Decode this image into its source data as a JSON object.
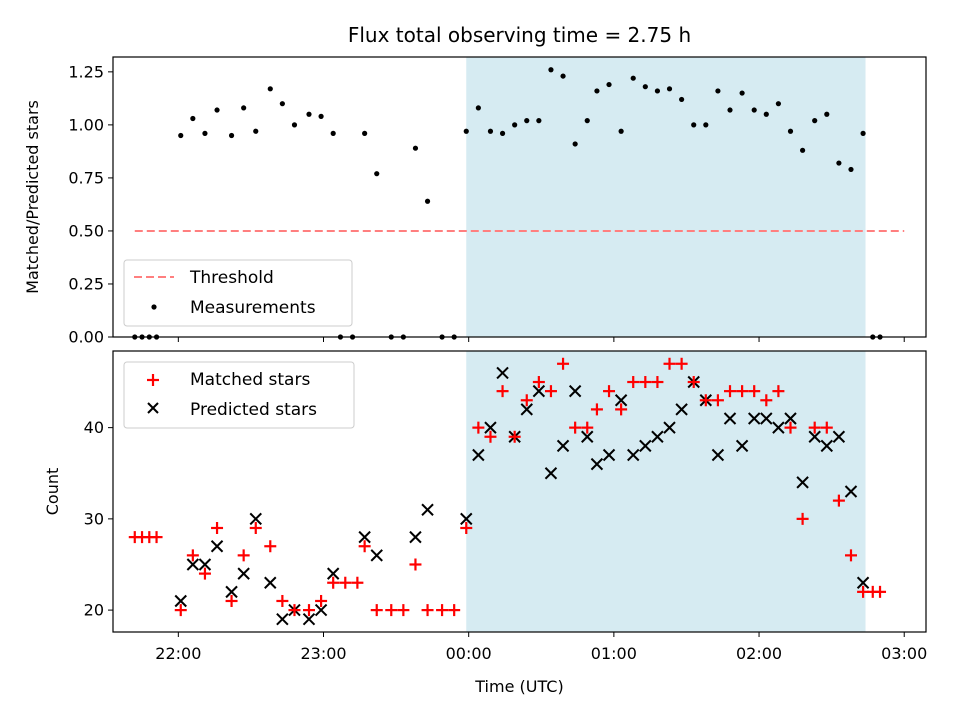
{
  "chart_data": [
    {
      "type": "scatter",
      "title": "Flux total observing time = 2.75 h",
      "xlabel": "",
      "ylabel": "Matched/Predicted stars",
      "ylim": [
        0,
        1.32
      ],
      "yticks": [
        0.0,
        0.25,
        0.5,
        0.75,
        1.0,
        1.25
      ],
      "ytick_labels": [
        "0.00",
        "0.25",
        "0.50",
        "0.75",
        "1.00",
        "1.25"
      ],
      "xlim": [
        "21:33",
        "03:09"
      ],
      "xticks": [
        "22:00",
        "23:00",
        "00:00",
        "01:00",
        "02:00",
        "03:00"
      ],
      "xtick_labels_visible": false,
      "shaded_interval": [
        "23:59",
        "02:44"
      ],
      "shade_color": "#add8e6",
      "legend_position": "lower-left",
      "threshold": {
        "name": "Threshold",
        "value": 0.5,
        "x_range": [
          "21:42",
          "03:00"
        ],
        "color": "#ff7f7f",
        "style": "dashed"
      },
      "series": [
        {
          "name": "Measurements",
          "color": "#000000",
          "marker": "dot",
          "points": [
            [
              "21:42",
              0.0
            ],
            [
              "21:45",
              0.0
            ],
            [
              "21:48",
              0.0
            ],
            [
              "21:51",
              0.0
            ],
            [
              "22:01",
              0.95
            ],
            [
              "22:06",
              1.03
            ],
            [
              "22:11",
              0.96
            ],
            [
              "22:16",
              1.07
            ],
            [
              "22:22",
              0.95
            ],
            [
              "22:27",
              1.08
            ],
            [
              "22:32",
              0.97
            ],
            [
              "22:38",
              1.17
            ],
            [
              "22:43",
              1.1
            ],
            [
              "22:48",
              1.0
            ],
            [
              "22:54",
              1.05
            ],
            [
              "22:59",
              1.04
            ],
            [
              "23:04",
              0.96
            ],
            [
              "23:07",
              0.0
            ],
            [
              "23:12",
              0.0
            ],
            [
              "23:17",
              0.96
            ],
            [
              "23:22",
              0.77
            ],
            [
              "23:28",
              0.0
            ],
            [
              "23:33",
              0.0
            ],
            [
              "23:38",
              0.89
            ],
            [
              "23:43",
              0.64
            ],
            [
              "23:49",
              0.0
            ],
            [
              "23:54",
              0.0
            ],
            [
              "23:59",
              0.97
            ],
            [
              "00:04",
              1.08
            ],
            [
              "00:09",
              0.97
            ],
            [
              "00:14",
              0.96
            ],
            [
              "00:19",
              1.0
            ],
            [
              "00:24",
              1.02
            ],
            [
              "00:29",
              1.02
            ],
            [
              "00:34",
              1.26
            ],
            [
              "00:39",
              1.23
            ],
            [
              "00:44",
              0.91
            ],
            [
              "00:49",
              1.02
            ],
            [
              "00:53",
              1.16
            ],
            [
              "00:58",
              1.19
            ],
            [
              "01:03",
              0.97
            ],
            [
              "01:08",
              1.22
            ],
            [
              "01:13",
              1.18
            ],
            [
              "01:18",
              1.16
            ],
            [
              "01:23",
              1.17
            ],
            [
              "01:28",
              1.12
            ],
            [
              "01:33",
              1.0
            ],
            [
              "01:38",
              1.0
            ],
            [
              "01:43",
              1.16
            ],
            [
              "01:48",
              1.07
            ],
            [
              "01:53",
              1.15
            ],
            [
              "01:58",
              1.07
            ],
            [
              "02:03",
              1.05
            ],
            [
              "02:08",
              1.1
            ],
            [
              "02:13",
              0.97
            ],
            [
              "02:18",
              0.88
            ],
            [
              "02:23",
              1.02
            ],
            [
              "02:28",
              1.05
            ],
            [
              "02:33",
              0.82
            ],
            [
              "02:38",
              0.79
            ],
            [
              "02:43",
              0.96
            ],
            [
              "02:47",
              0.0
            ],
            [
              "02:50",
              0.0
            ]
          ]
        }
      ]
    },
    {
      "type": "scatter",
      "title": "",
      "xlabel": "Time (UTC)",
      "ylabel": "Count",
      "ylim": [
        17.6,
        48.4
      ],
      "yticks": [
        20,
        30,
        40
      ],
      "ytick_labels": [
        "20",
        "30",
        "40"
      ],
      "xlim": [
        "21:33",
        "03:09"
      ],
      "xticks": [
        "22:00",
        "23:00",
        "00:00",
        "01:00",
        "02:00",
        "03:00"
      ],
      "xtick_labels": [
        "22:00",
        "23:00",
        "00:00",
        "01:00",
        "02:00",
        "03:00"
      ],
      "shaded_interval": [
        "23:59",
        "02:44"
      ],
      "shade_color": "#add8e6",
      "legend_position": "top-left",
      "series": [
        {
          "name": "Matched stars",
          "color": "#ff0000",
          "marker": "plus",
          "points": [
            [
              "21:42",
              28
            ],
            [
              "21:45",
              28
            ],
            [
              "21:48",
              28
            ],
            [
              "21:51",
              28
            ],
            [
              "22:01",
              20
            ],
            [
              "22:06",
              26
            ],
            [
              "22:11",
              24
            ],
            [
              "22:16",
              29
            ],
            [
              "22:22",
              21
            ],
            [
              "22:27",
              26
            ],
            [
              "22:32",
              29
            ],
            [
              "22:38",
              27
            ],
            [
              "22:43",
              21
            ],
            [
              "22:48",
              20
            ],
            [
              "22:54",
              20
            ],
            [
              "22:59",
              21
            ],
            [
              "23:04",
              23
            ],
            [
              "23:09",
              23
            ],
            [
              "23:14",
              23
            ],
            [
              "23:17",
              27
            ],
            [
              "23:22",
              20
            ],
            [
              "23:28",
              20
            ],
            [
              "23:33",
              20
            ],
            [
              "23:38",
              25
            ],
            [
              "23:43",
              20
            ],
            [
              "23:49",
              20
            ],
            [
              "23:54",
              20
            ],
            [
              "23:59",
              29
            ],
            [
              "00:04",
              40
            ],
            [
              "00:09",
              39
            ],
            [
              "00:14",
              44
            ],
            [
              "00:19",
              39
            ],
            [
              "00:24",
              43
            ],
            [
              "00:29",
              45
            ],
            [
              "00:34",
              44
            ],
            [
              "00:39",
              47
            ],
            [
              "00:44",
              40
            ],
            [
              "00:49",
              40
            ],
            [
              "00:53",
              42
            ],
            [
              "00:58",
              44
            ],
            [
              "01:03",
              42
            ],
            [
              "01:08",
              45
            ],
            [
              "01:13",
              45
            ],
            [
              "01:18",
              45
            ],
            [
              "01:23",
              47
            ],
            [
              "01:28",
              47
            ],
            [
              "01:33",
              45
            ],
            [
              "01:38",
              43
            ],
            [
              "01:43",
              43
            ],
            [
              "01:48",
              44
            ],
            [
              "01:53",
              44
            ],
            [
              "01:58",
              44
            ],
            [
              "02:03",
              43
            ],
            [
              "02:08",
              44
            ],
            [
              "02:13",
              40
            ],
            [
              "02:18",
              30
            ],
            [
              "02:23",
              40
            ],
            [
              "02:28",
              40
            ],
            [
              "02:33",
              32
            ],
            [
              "02:38",
              26
            ],
            [
              "02:43",
              22
            ],
            [
              "02:47",
              22
            ],
            [
              "02:50",
              22
            ]
          ]
        },
        {
          "name": "Predicted stars",
          "color": "#000000",
          "marker": "x",
          "points": [
            [
              "22:01",
              21
            ],
            [
              "22:06",
              25
            ],
            [
              "22:11",
              25
            ],
            [
              "22:16",
              27
            ],
            [
              "22:22",
              22
            ],
            [
              "22:27",
              24
            ],
            [
              "22:32",
              30
            ],
            [
              "22:38",
              23
            ],
            [
              "22:43",
              19
            ],
            [
              "22:48",
              20
            ],
            [
              "22:54",
              19
            ],
            [
              "22:59",
              20
            ],
            [
              "23:04",
              24
            ],
            [
              "23:17",
              28
            ],
            [
              "23:22",
              26
            ],
            [
              "23:38",
              28
            ],
            [
              "23:43",
              31
            ],
            [
              "23:59",
              30
            ],
            [
              "00:04",
              37
            ],
            [
              "00:09",
              40
            ],
            [
              "00:14",
              46
            ],
            [
              "00:19",
              39
            ],
            [
              "00:24",
              42
            ],
            [
              "00:29",
              44
            ],
            [
              "00:34",
              35
            ],
            [
              "00:39",
              38
            ],
            [
              "00:44",
              44
            ],
            [
              "00:49",
              39
            ],
            [
              "00:53",
              36
            ],
            [
              "00:58",
              37
            ],
            [
              "01:03",
              43
            ],
            [
              "01:08",
              37
            ],
            [
              "01:13",
              38
            ],
            [
              "01:18",
              39
            ],
            [
              "01:23",
              40
            ],
            [
              "01:28",
              42
            ],
            [
              "01:33",
              45
            ],
            [
              "01:38",
              43
            ],
            [
              "01:43",
              37
            ],
            [
              "01:48",
              41
            ],
            [
              "01:53",
              38
            ],
            [
              "01:58",
              41
            ],
            [
              "02:03",
              41
            ],
            [
              "02:08",
              40
            ],
            [
              "02:13",
              41
            ],
            [
              "02:18",
              34
            ],
            [
              "02:23",
              39
            ],
            [
              "02:28",
              38
            ],
            [
              "02:33",
              39
            ],
            [
              "02:38",
              33
            ],
            [
              "02:43",
              23
            ]
          ]
        }
      ]
    }
  ]
}
